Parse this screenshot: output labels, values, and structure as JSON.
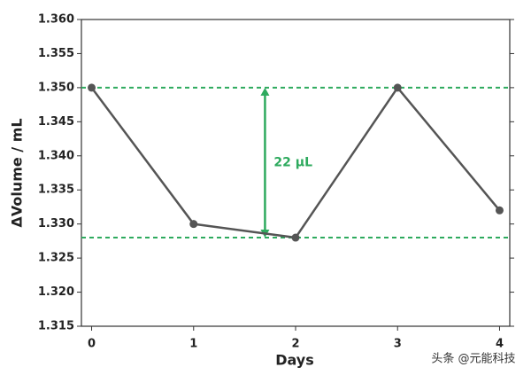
{
  "chart_data": {
    "type": "line",
    "x": [
      0,
      1,
      2,
      3,
      4
    ],
    "values": [
      1.35,
      1.33,
      1.328,
      1.35,
      1.332
    ],
    "color": "#555555",
    "x_label": "Days",
    "y_label": "ΔVolume / mL",
    "xlim": [
      -0.1,
      4.1
    ],
    "xticks": [
      0,
      1,
      2,
      3,
      4
    ],
    "ylim": [
      1.315,
      1.36
    ],
    "yticks": [
      {
        "value": 1.315,
        "label": "1.315"
      },
      {
        "value": 1.32,
        "label": "1.320"
      },
      {
        "value": 1.325,
        "label": "1.325"
      },
      {
        "value": 1.33,
        "label": "1.330"
      },
      {
        "value": 1.335,
        "label": "1.335"
      },
      {
        "value": 1.34,
        "label": "1.340"
      },
      {
        "value": 1.345,
        "label": "1.345"
      },
      {
        "value": 1.35,
        "label": "1.350"
      },
      {
        "value": 1.355,
        "label": "1.355"
      },
      {
        "value": 1.36,
        "label": "1.360"
      }
    ],
    "reference_lines": [
      1.35,
      1.328
    ],
    "annotation_color": "#2eaa5e",
    "annotation": {
      "text": "22 μL",
      "x": 1.7,
      "y_from": 1.328,
      "y_to": 1.35
    },
    "watermark": "头条 @元能科技"
  }
}
